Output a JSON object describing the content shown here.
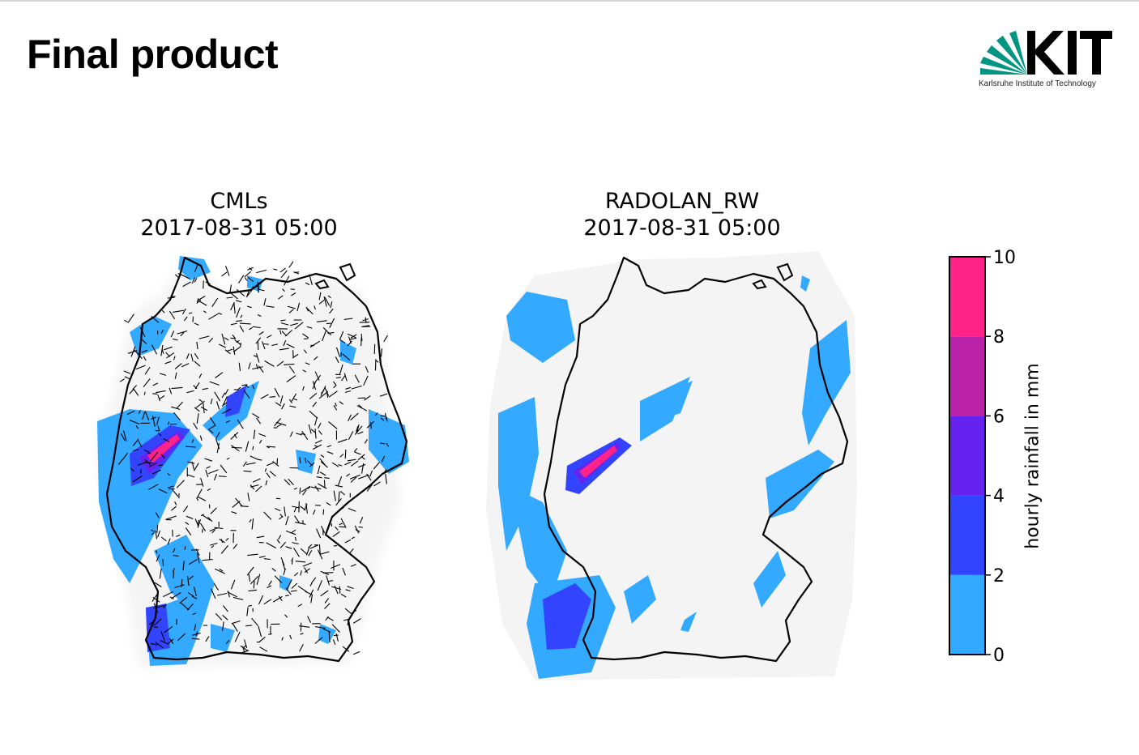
{
  "slide": {
    "title": "Final product",
    "logo": {
      "wordmark": "KIT",
      "subtitle": "Karlsruhe Institute of Technology",
      "color": "#009682"
    }
  },
  "maps": [
    {
      "id": "cml",
      "title": "CMLs",
      "timestamp": "2017-08-31 05:00"
    },
    {
      "id": "radolan",
      "title": "RADOLAN_RW",
      "timestamp": "2017-08-31 05:00"
    }
  ],
  "colorbar": {
    "label": "hourly rainfall in mm",
    "ticks": [
      "0",
      "2",
      "4",
      "6",
      "8",
      "10"
    ],
    "bins": [
      {
        "from": 0,
        "to": 2,
        "color": "#33aaff"
      },
      {
        "from": 2,
        "to": 4,
        "color": "#3344ff"
      },
      {
        "from": 4,
        "to": 6,
        "color": "#6622ee"
      },
      {
        "from": 6,
        "to": 8,
        "color": "#bb22aa"
      },
      {
        "from": 8,
        "to": 10,
        "color": "#ff2288"
      }
    ]
  },
  "colors": {
    "background_field": "#f4f4f4",
    "border": "#000000"
  }
}
